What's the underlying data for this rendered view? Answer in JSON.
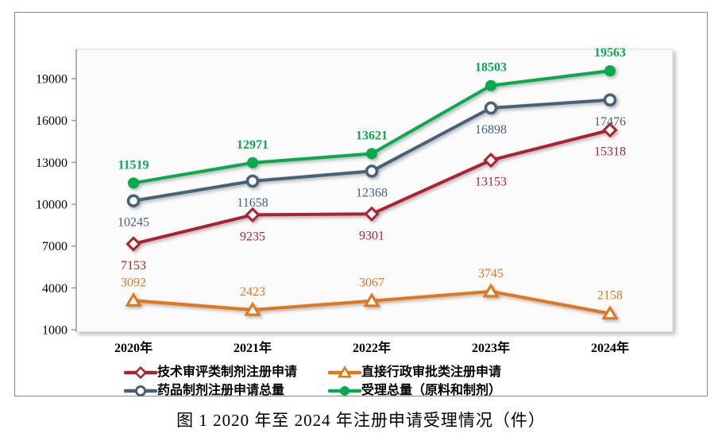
{
  "figure": {
    "caption": "图 1  2020 年至 2024 年注册申请受理情况（件）"
  },
  "chart_data": {
    "type": "line",
    "categories": [
      "2020年",
      "2021年",
      "2022年",
      "2023年",
      "2024年"
    ],
    "y_ticks": [
      19000,
      16000,
      13000,
      10000,
      7000,
      4000,
      1000
    ],
    "ylim": [
      1000,
      21100
    ],
    "grid": false,
    "legend_position": "bottom",
    "series": [
      {
        "name": "技术审评类制剂注册申请",
        "values": [
          7153,
          9235,
          9301,
          13153,
          15318
        ],
        "color": "#AE212F",
        "marker": "diamond-open",
        "label_position": "below",
        "label_bold": false
      },
      {
        "name": "直接行政审批类注册申请",
        "values": [
          3092,
          2423,
          3067,
          3745,
          2158
        ],
        "color": "#E1761C",
        "marker": "triangle-open",
        "label_position": "above",
        "label_bold": false
      },
      {
        "name": "药品制剂注册申请总量",
        "values": [
          10245,
          11658,
          12368,
          16898,
          17476
        ],
        "color": "#47617A",
        "marker": "circle-open",
        "label_position": "below",
        "label_bold": false
      },
      {
        "name": "受理总量（原料和制剂）",
        "values": [
          11519,
          12971,
          13621,
          18503,
          19563
        ],
        "color": "#0BA94E",
        "marker": "circle-filled",
        "label_position": "above",
        "label_bold": true
      }
    ]
  }
}
